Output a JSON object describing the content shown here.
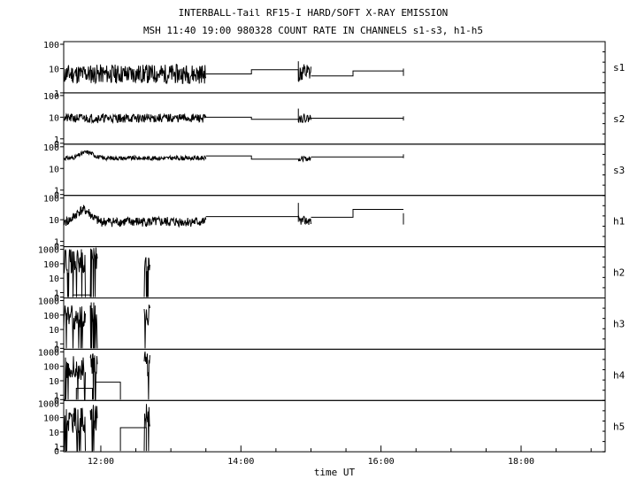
{
  "title_line1": "INTERBALL-Tail RF15-I HARD/SOFT X-RAY EMISSION",
  "title_line2": "MSH 11:40 19:00 980328  COUNT RATE IN CHANNELS s1-s3, h1-h5",
  "chart_data": {
    "type": "line",
    "xlabel": "time UT",
    "x_range_hours": [
      11.47,
      19.2
    ],
    "x_ticks": [
      {
        "value": 12,
        "label": "12:00"
      },
      {
        "value": 14,
        "label": "14:00"
      },
      {
        "value": 16,
        "label": "16:00"
      },
      {
        "value": 18,
        "label": "18:00"
      }
    ],
    "y_scale": "log",
    "grid": false,
    "panels": [
      {
        "name": "s1",
        "ymax": 100,
        "ticks": [
          "100",
          "10",
          "1"
        ],
        "has_zero": false,
        "series": [
          {
            "kind": "noise",
            "x0": 11.47,
            "x1": 13.5,
            "base": 6,
            "noise": 2.5,
            "seed": 11
          },
          {
            "kind": "step",
            "x": [
              13.5,
              14.15,
              14.15,
              14.82
            ],
            "y": [
              6,
              6,
              9,
              9
            ]
          },
          {
            "kind": "spike",
            "x": 14.82,
            "y_lo": 3,
            "y_hi": 20
          },
          {
            "kind": "noise",
            "x0": 14.82,
            "x1": 15.0,
            "base": 6,
            "noise": 2.5,
            "seed": 12
          },
          {
            "kind": "step",
            "x": [
              15.0,
              15.6,
              15.6,
              16.32
            ],
            "y": [
              5,
              5,
              8,
              8
            ]
          },
          {
            "kind": "spike",
            "x": 16.32,
            "y_lo": 5,
            "y_hi": 10
          }
        ]
      },
      {
        "name": "s2",
        "ymax": 100,
        "ticks": [
          "100",
          "10",
          "1",
          "0"
        ],
        "has_zero": true,
        "series": [
          {
            "kind": "noise",
            "x0": 11.47,
            "x1": 13.5,
            "base": 9,
            "noise": 1.6,
            "seed": 21
          },
          {
            "kind": "step",
            "x": [
              13.5,
              14.15,
              14.15,
              14.82
            ],
            "y": [
              10,
              10,
              8,
              8
            ]
          },
          {
            "kind": "spike",
            "x": 14.82,
            "y_lo": 6,
            "y_hi": 25
          },
          {
            "kind": "noise",
            "x0": 14.82,
            "x1": 15.0,
            "base": 9,
            "noise": 1.6,
            "seed": 22
          },
          {
            "kind": "step",
            "x": [
              15.0,
              16.32
            ],
            "y": [
              9,
              9
            ]
          },
          {
            "kind": "spike",
            "x": 16.32,
            "y_lo": 7,
            "y_hi": 11
          }
        ]
      },
      {
        "name": "s3",
        "ymax": 100,
        "ticks": [
          "100",
          "10",
          "1",
          "0"
        ],
        "has_zero": true,
        "series": [
          {
            "kind": "wave",
            "x0": 11.47,
            "x1": 13.5,
            "base": 30,
            "bump_x": 11.8,
            "bump": 1.9,
            "noise": 1.25,
            "seed": 31
          },
          {
            "kind": "step",
            "x": [
              13.5,
              14.15,
              14.15,
              14.82
            ],
            "y": [
              38,
              38,
              27,
              27
            ]
          },
          {
            "kind": "noise",
            "x0": 14.82,
            "x1": 15.0,
            "base": 28,
            "noise": 1.3,
            "seed": 32
          },
          {
            "kind": "step",
            "x": [
              15.0,
              16.32
            ],
            "y": [
              34,
              34
            ]
          },
          {
            "kind": "spike",
            "x": 16.32,
            "y_lo": 30,
            "y_hi": 45
          }
        ]
      },
      {
        "name": "h1",
        "ymax": 100,
        "ticks": [
          "100",
          "10",
          "1",
          "0"
        ],
        "has_zero": true,
        "series": [
          {
            "kind": "wave",
            "x0": 11.47,
            "x1": 13.5,
            "base": 8,
            "bump_x": 11.75,
            "bump": 3.5,
            "noise": 1.7,
            "seed": 41
          },
          {
            "kind": "step",
            "x": [
              13.5,
              14.82
            ],
            "y": [
              14,
              14
            ]
          },
          {
            "kind": "spike",
            "x": 14.82,
            "y_lo": 8,
            "y_hi": 60
          },
          {
            "kind": "noise",
            "x0": 14.82,
            "x1": 15.0,
            "base": 9,
            "noise": 1.6,
            "seed": 42
          },
          {
            "kind": "step",
            "x": [
              15.0,
              15.6,
              15.6,
              16.32
            ],
            "y": [
              13,
              13,
              30,
              30
            ]
          },
          {
            "kind": "spike",
            "x": 16.32,
            "y_lo": 6,
            "y_hi": 20
          }
        ]
      },
      {
        "name": "h2",
        "ymax": 1000,
        "ticks": [
          "1000",
          "100",
          "10",
          "1",
          "0"
        ],
        "has_zero": true,
        "series": [
          {
            "kind": "burst",
            "x0": 11.47,
            "x1": 11.78,
            "base": 200,
            "seed": 51
          },
          {
            "kind": "step",
            "x": [
              11.6,
              11.6,
              11.85,
              11.85
            ],
            "y": [
              0,
              0.3,
              0.3,
              0
            ]
          },
          {
            "kind": "burst",
            "x0": 11.85,
            "x1": 11.95,
            "base": 300,
            "seed": 52
          },
          {
            "kind": "burst",
            "x0": 12.62,
            "x1": 12.7,
            "base": 300,
            "seed": 53
          }
        ]
      },
      {
        "name": "h3",
        "ymax": 1000,
        "ticks": [
          "1000",
          "100",
          "10",
          "1",
          "0"
        ],
        "has_zero": true,
        "series": [
          {
            "kind": "burst",
            "x0": 11.47,
            "x1": 11.78,
            "base": 100,
            "seed": 61
          },
          {
            "kind": "burst",
            "x0": 11.85,
            "x1": 11.95,
            "base": 150,
            "seed": 62
          },
          {
            "kind": "burst",
            "x0": 12.62,
            "x1": 12.7,
            "base": 200,
            "seed": 63
          }
        ]
      },
      {
        "name": "h4",
        "ymax": 1000,
        "ticks": [
          "1000",
          "100",
          "10",
          "1",
          "0"
        ],
        "has_zero": true,
        "series": [
          {
            "kind": "burst",
            "x0": 11.47,
            "x1": 11.78,
            "base": 100,
            "seed": 71
          },
          {
            "kind": "step",
            "x": [
              11.65,
              11.65,
              11.88,
              11.88
            ],
            "y": [
              0,
              3,
              3,
              0
            ]
          },
          {
            "kind": "burst",
            "x0": 11.85,
            "x1": 11.95,
            "base": 150,
            "seed": 72
          },
          {
            "kind": "step",
            "x": [
              11.92,
              11.92,
              12.28,
              12.28
            ],
            "y": [
              0,
              8,
              8,
              0
            ]
          },
          {
            "kind": "burst",
            "x0": 12.62,
            "x1": 12.7,
            "base": 200,
            "seed": 73
          }
        ]
      },
      {
        "name": "h5",
        "ymax": 1000,
        "ticks": [
          "1000",
          "100",
          "10",
          "1",
          "0"
        ],
        "has_zero": true,
        "series": [
          {
            "kind": "burst",
            "x0": 11.47,
            "x1": 11.78,
            "base": 100,
            "seed": 81
          },
          {
            "kind": "burst",
            "x0": 11.85,
            "x1": 11.95,
            "base": 150,
            "seed": 82
          },
          {
            "kind": "step",
            "x": [
              12.28,
              12.28,
              12.65,
              12.65
            ],
            "y": [
              0,
              20,
              20,
              0
            ]
          },
          {
            "kind": "burst",
            "x0": 12.62,
            "x1": 12.7,
            "base": 200,
            "seed": 83
          }
        ]
      }
    ]
  }
}
